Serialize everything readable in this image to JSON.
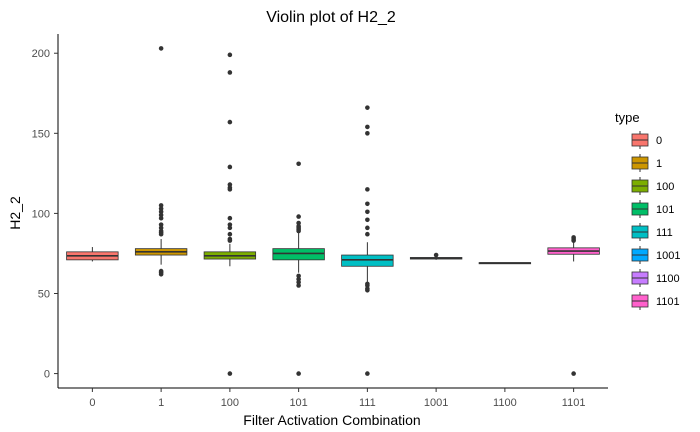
{
  "chart_data": {
    "type": "box",
    "title": "Violin plot of H2_2",
    "xlabel": "Filter Activation Combination",
    "ylabel": "H2_2",
    "ylim": [
      -9,
      212
    ],
    "yticks": [
      0,
      50,
      100,
      150,
      200
    ],
    "grid": false,
    "legend": {
      "title": "type",
      "position": "right"
    },
    "categories": [
      "0",
      "1",
      "100",
      "101",
      "111",
      "1001",
      "1100",
      "1101"
    ],
    "series": [
      {
        "name": "0",
        "color": "#F8766D",
        "q1": 71,
        "median": 73.5,
        "q3": 76,
        "whisker_low": 70,
        "whisker_high": 79,
        "outliers": []
      },
      {
        "name": "1",
        "color": "#CD9600",
        "q1": 74,
        "median": 76,
        "q3": 78,
        "whisker_low": 68,
        "whisker_high": 84,
        "outliers": [
          203,
          105,
          103,
          101,
          99,
          97,
          93,
          91,
          89,
          88,
          87,
          64,
          63,
          62
        ]
      },
      {
        "name": "100",
        "color": "#7CAE00",
        "q1": 71.5,
        "median": 73.5,
        "q3": 76,
        "whisker_low": 67,
        "whisker_high": 81,
        "outliers": [
          199,
          188,
          157,
          129,
          118,
          116,
          115,
          97,
          93,
          91,
          87,
          84,
          83,
          0
        ]
      },
      {
        "name": "101",
        "color": "#00BE67",
        "q1": 71,
        "median": 75,
        "q3": 78,
        "whisker_low": 63,
        "whisker_high": 88,
        "outliers": [
          131,
          98,
          94,
          92,
          91,
          90,
          89,
          61,
          59,
          57,
          55,
          0
        ]
      },
      {
        "name": "111",
        "color": "#00BFC4",
        "q1": 67,
        "median": 71,
        "q3": 74,
        "whisker_low": 57,
        "whisker_high": 82,
        "outliers": [
          166,
          154,
          150,
          115,
          106,
          101,
          96,
          91,
          87,
          56,
          55,
          53,
          52,
          0
        ]
      },
      {
        "name": "1001",
        "color": "#00A9FF",
        "q1": 71.5,
        "median": 72,
        "q3": 72.5,
        "whisker_low": 71,
        "whisker_high": 73,
        "outliers": [
          74
        ]
      },
      {
        "name": "1100",
        "color": "#C77CFF",
        "q1": 69,
        "median": 69,
        "q3": 69.3,
        "whisker_low": 69,
        "whisker_high": 69.3,
        "outliers": []
      },
      {
        "name": "1101",
        "color": "#FF61CC",
        "q1": 74.5,
        "median": 76.5,
        "q3": 78.5,
        "whisker_low": 70,
        "whisker_high": 82,
        "outliers": [
          85,
          84,
          83,
          0
        ]
      }
    ]
  }
}
